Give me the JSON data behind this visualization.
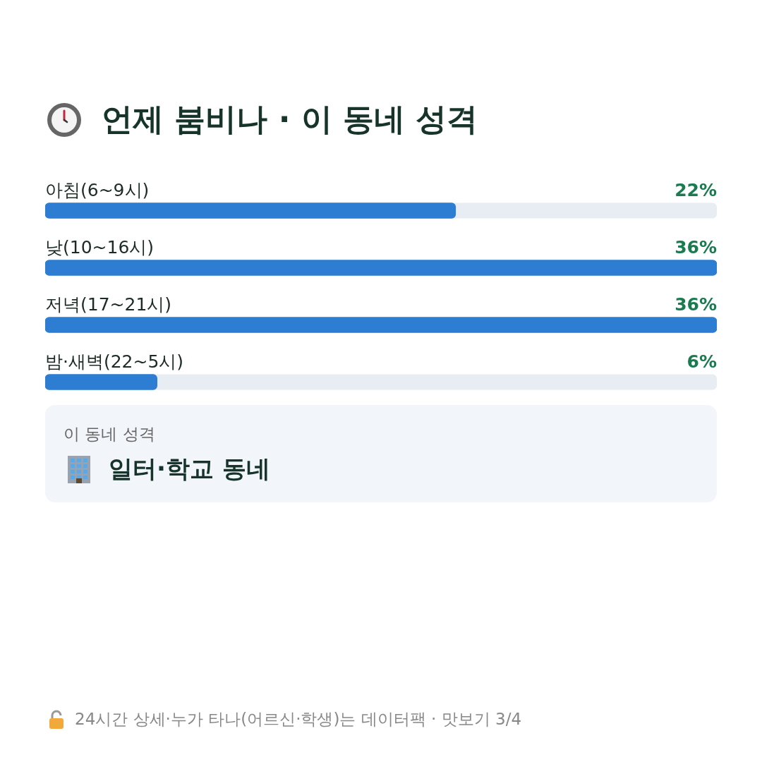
{
  "chart_data": {
    "type": "bar",
    "orientation": "horizontal",
    "title": "언제 붐비나 · 이 동네 성격",
    "categories": [
      "아침(6~9시)",
      "낮(10~16시)",
      "저녁(17~21시)",
      "밤·새벽(22~5시)"
    ],
    "values": [
      22,
      36,
      36,
      6
    ],
    "color": "#2d7dd2",
    "data_labels": true,
    "value_labels": [
      "22%",
      "36%",
      "36%",
      "6%"
    ],
    "legend": false,
    "annotations": [
      "이 동네 성격",
      "일터·학교 동네",
      "24시간 상세·누가 타나(어르신·학생)는 데이터팩 · 맛보기 3/4"
    ]
  }
}
